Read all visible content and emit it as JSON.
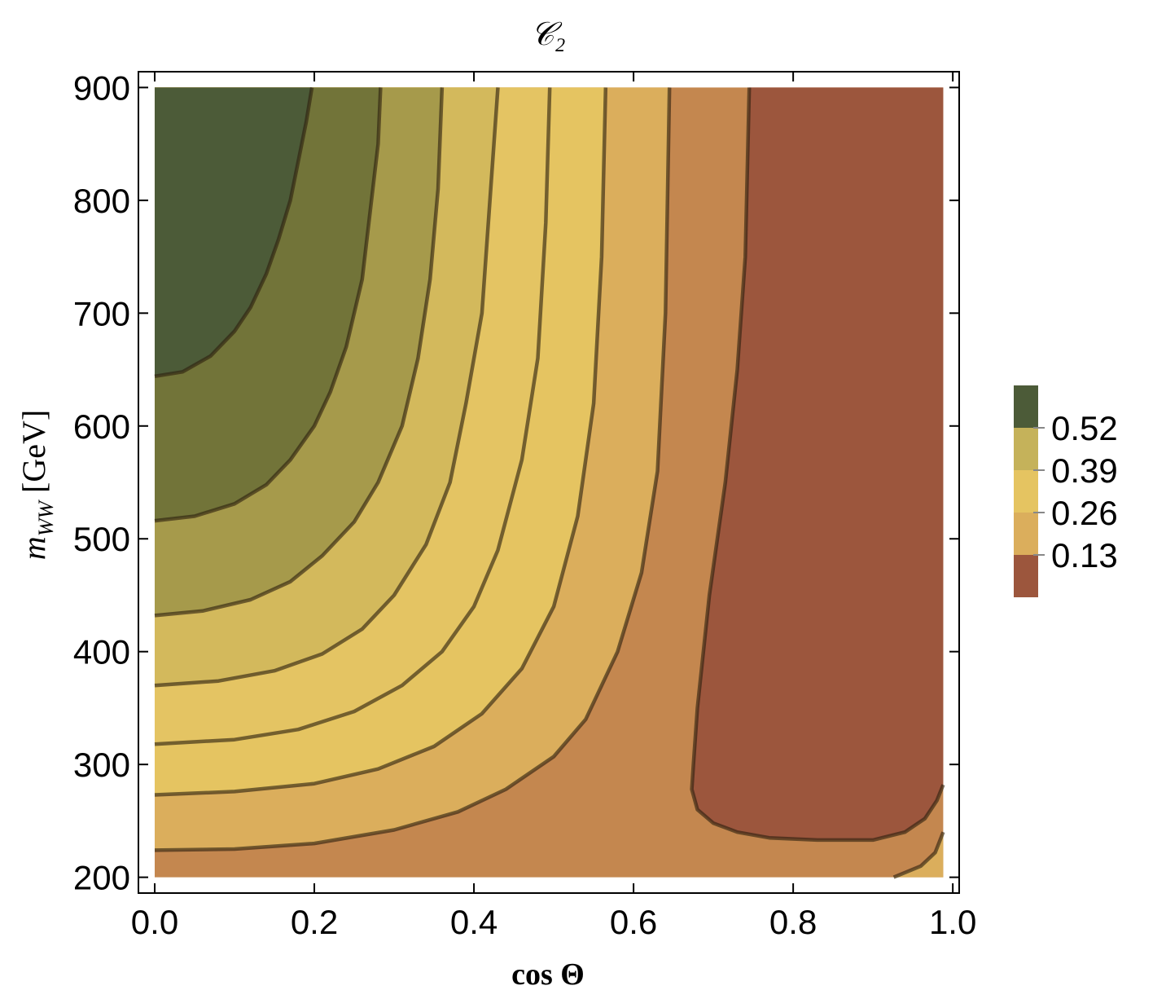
{
  "chart_data": {
    "type": "contour",
    "title": "𝒞₂",
    "x_label": "cos Θ",
    "y_label": {
      "var": "m",
      "sub": "WW",
      "unit": "[GeV]"
    },
    "xlim": [
      -0.0204,
      1.008
    ],
    "ylim": [
      186,
      914
    ],
    "xticks": [
      {
        "value": 0,
        "label": "0.0"
      },
      0.2,
      0.4,
      0.6,
      0.8,
      {
        "value": 1,
        "label": "1.0"
      }
    ],
    "yticks": [
      200,
      300,
      400,
      500,
      600,
      700,
      800,
      900
    ],
    "domain": {
      "x": [
        0,
        0.988
      ],
      "y": [
        200,
        900
      ]
    },
    "base_color": "#c4874f",
    "contours": [
      {
        "fill_toward": "bottom-right",
        "color": "#dbae5c",
        "x": [
          0.926,
          0.96,
          0.978,
          0.988
        ],
        "y": [
          200,
          210,
          222,
          240
        ]
      },
      {
        "fill_toward": "top-right",
        "color": "#9c563d",
        "x": [
          0.745,
          0.74,
          0.73,
          0.715,
          0.695,
          0.68,
          0.675,
          0.673,
          0.68,
          0.7,
          0.73,
          0.77,
          0.83,
          0.9,
          0.94,
          0.965,
          0.98,
          0.988
        ],
        "y": [
          900,
          750,
          650,
          550,
          450,
          350,
          300,
          278,
          260,
          248,
          240,
          235,
          233,
          233,
          240,
          252,
          268,
          282
        ]
      },
      {
        "fill_toward": "top-left",
        "color": "#dbae5c",
        "x": [
          0,
          0.1,
          0.2,
          0.3,
          0.38,
          0.44,
          0.5,
          0.54,
          0.58,
          0.61,
          0.63,
          0.64,
          0.645
        ],
        "y": [
          224,
          225,
          230,
          242,
          258,
          278,
          307,
          340,
          400,
          470,
          560,
          700,
          900
        ]
      },
      {
        "fill_toward": "top-left",
        "color": "#e5c461",
        "x": [
          0,
          0.1,
          0.2,
          0.28,
          0.35,
          0.41,
          0.46,
          0.5,
          0.53,
          0.55,
          0.56,
          0.565
        ],
        "y": [
          273,
          276,
          283,
          296,
          316,
          345,
          385,
          440,
          520,
          620,
          750,
          900
        ]
      },
      {
        "fill_toward": "top-left",
        "color": "#e4c463",
        "x": [
          0,
          0.1,
          0.18,
          0.25,
          0.31,
          0.36,
          0.4,
          0.43,
          0.46,
          0.48,
          0.49,
          0.495
        ],
        "y": [
          318,
          322,
          331,
          347,
          370,
          400,
          440,
          490,
          570,
          660,
          780,
          900
        ]
      },
      {
        "fill_toward": "top-left",
        "color": "#d3b95c",
        "x": [
          0,
          0.08,
          0.15,
          0.21,
          0.26,
          0.3,
          0.34,
          0.37,
          0.39,
          0.41,
          0.42,
          0.43
        ],
        "y": [
          370,
          374,
          383,
          398,
          420,
          450,
          495,
          550,
          620,
          700,
          800,
          900
        ]
      },
      {
        "fill_toward": "top-left",
        "color": "#a69a4b",
        "x": [
          0,
          0.06,
          0.12,
          0.17,
          0.21,
          0.25,
          0.28,
          0.31,
          0.33,
          0.345,
          0.355,
          0.36
        ],
        "y": [
          432,
          436,
          446,
          462,
          485,
          515,
          550,
          600,
          660,
          730,
          810,
          900
        ]
      },
      {
        "fill_toward": "top-left",
        "color": "#727439",
        "x": [
          0,
          0.05,
          0.1,
          0.14,
          0.17,
          0.2,
          0.22,
          0.24,
          0.26,
          0.27,
          0.28,
          0.283
        ],
        "y": [
          516,
          520,
          531,
          548,
          570,
          600,
          630,
          670,
          730,
          790,
          850,
          900
        ]
      },
      {
        "fill_toward": "top-left",
        "color": "#4c5b38",
        "x": [
          0,
          0.035,
          0.07,
          0.1,
          0.12,
          0.14,
          0.155,
          0.17,
          0.18,
          0.19,
          0.197
        ],
        "y": [
          644,
          648,
          662,
          684,
          705,
          735,
          765,
          800,
          835,
          870,
          900
        ]
      }
    ],
    "colorbar": {
      "lim": [
        0,
        0.65
      ],
      "ticks": [
        0.13,
        0.26,
        0.39,
        0.52
      ],
      "colors": [
        "#9c563d",
        "#dbae5c",
        "#e5c461",
        "#c5b25a",
        "#4c5b38"
      ]
    }
  }
}
